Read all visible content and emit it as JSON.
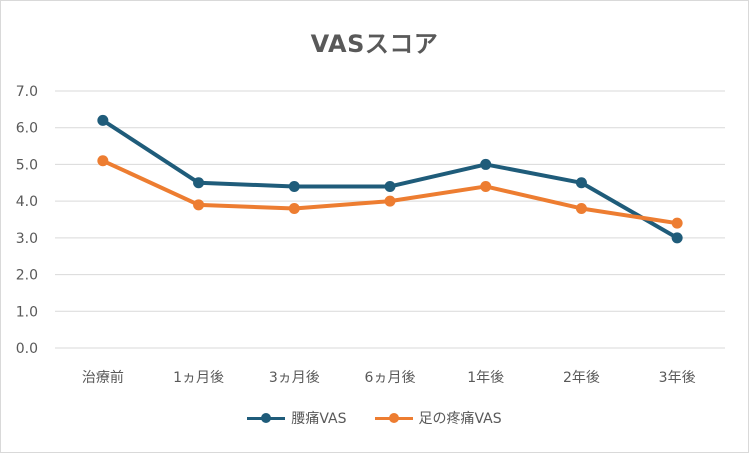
{
  "chart_data": {
    "type": "line",
    "title": "VASスコア",
    "xlabel": "",
    "ylabel": "",
    "categories": [
      "治療前",
      "1ヵ月後",
      "3ヵ月後",
      "6ヵ月後",
      "1年後",
      "2年後",
      "3年後"
    ],
    "ylim": [
      0,
      7
    ],
    "yticks": [
      "0.0",
      "1.0",
      "2.0",
      "3.0",
      "4.0",
      "5.0",
      "6.0",
      "7.0"
    ],
    "grid": true,
    "legend_position": "bottom",
    "series": [
      {
        "name": "腰痛VAS",
        "color": "#1f5c7a",
        "values": [
          6.2,
          4.5,
          4.4,
          4.4,
          5.0,
          4.5,
          3.0
        ]
      },
      {
        "name": "足の疼痛VAS",
        "color": "#ed7d31",
        "values": [
          5.1,
          3.9,
          3.8,
          4.0,
          4.4,
          3.8,
          3.4
        ]
      }
    ]
  }
}
